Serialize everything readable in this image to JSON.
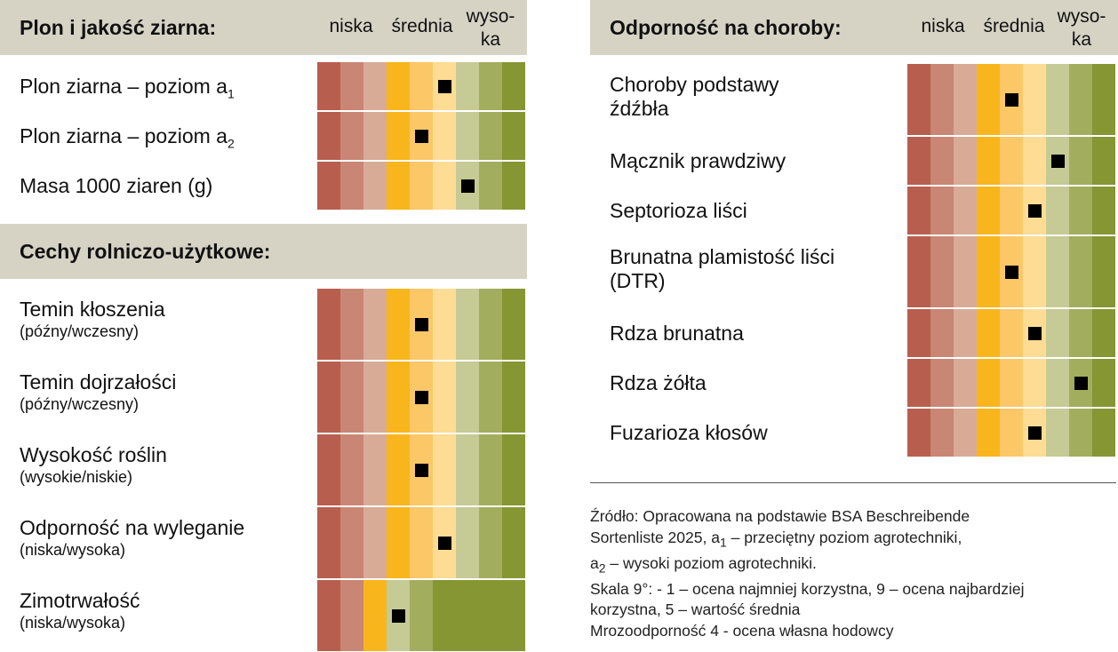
{
  "scale_labels": {
    "low": "niska",
    "mid": "średnia",
    "high": "wyso-\nka"
  },
  "colors": [
    "#b85e4e",
    "#c98674",
    "#d8ab97",
    "#f9b51c",
    "#fcc767",
    "#fedc94",
    "#c6ca94",
    "#a3ad5e",
    "#859633"
  ],
  "marker_color": "#000000",
  "header_color": "#d6d3c5",
  "chart_data": {
    "type": "table",
    "scale_min": 1,
    "scale_max": 9,
    "sections": [
      {
        "title": "Plon i jakość ziarna:",
        "rows": [
          {
            "label": "Plon ziarna – poziom a",
            "subscript": "1",
            "note": "",
            "value": 6
          },
          {
            "label": "Plon ziarna – poziom a",
            "subscript": "2",
            "note": "",
            "value": 5
          },
          {
            "label": "Masa 1000 ziaren (g)",
            "subscript": "",
            "note": "",
            "value": 7
          }
        ]
      },
      {
        "title": "Cechy rolniczo-użytkowe:",
        "rows": [
          {
            "label": "Temin kłoszenia",
            "subscript": "",
            "note": "(późny/wczesny)",
            "value": 5
          },
          {
            "label": "Temin dojrzałości",
            "subscript": "",
            "note": "(późny/wczesny)",
            "value": 5
          },
          {
            "label": "Wysokość roślin",
            "subscript": "",
            "note": "(wysokie/niskie)",
            "value": 5
          },
          {
            "label": "Odporność na wyleganie",
            "subscript": "",
            "note": "(niska/wysoka)",
            "value": 6
          },
          {
            "label": "Zimotrwałość",
            "subscript": "",
            "note": "(niska/wysoka)",
            "value": 4,
            "scale": 5
          }
        ]
      },
      {
        "title": "Odporność na choroby:",
        "rows": [
          {
            "label": "Choroby podstawy\nźdźbła",
            "subscript": "",
            "note": "",
            "value": 5
          },
          {
            "label": "Mącznik prawdziwy",
            "subscript": "",
            "note": "",
            "value": 7
          },
          {
            "label": "Septorioza liści",
            "subscript": "",
            "note": "",
            "value": 6
          },
          {
            "label": "Brunatna plamistość liści\n(DTR)",
            "subscript": "",
            "note": "",
            "value": 5
          },
          {
            "label": "Rdza brunatna",
            "subscript": "",
            "note": "",
            "value": 6
          },
          {
            "label": "Rdza żółta",
            "subscript": "",
            "note": "",
            "value": 8
          },
          {
            "label": "Fuzarioza kłosów",
            "subscript": "",
            "note": "",
            "value": 6
          }
        ]
      }
    ]
  },
  "source_note": {
    "line1": "Źródło: Opracowana na podstawie BSA Beschreibende",
    "line2a": "Sortenliste 2025, a",
    "line2sub": "1",
    "line2b": " – przeciętny poziom agrotechniki,",
    "line3a": "a",
    "line3sub": "2",
    "line3b": " – wysoki poziom agrotechniki.",
    "line4": "Skala 9°: - 1 – ocena najmniej korzystna, 9 – ocena najbardziej",
    "line5": "korzystna, 5 – wartość średnia",
    "line6": "Mrozoodporność 4 - ocena własna hodowcy"
  }
}
